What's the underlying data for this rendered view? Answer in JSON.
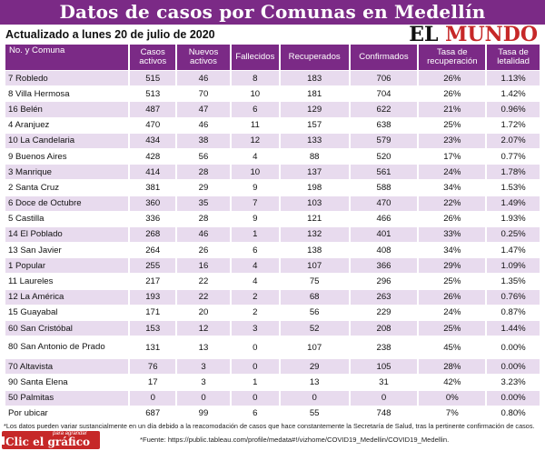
{
  "header": {
    "title": "Datos de casos por Comunas en Medellín",
    "updated": "Actualizado a lunes 20 de julio de 2020",
    "logo_prefix": "EL ",
    "logo_accent": "MUNDO"
  },
  "table": {
    "columns": [
      "No. y Comuna",
      "Casos activos",
      "Nuevos activos",
      "Fallecidos",
      "Recuperados",
      "Confirmados",
      "Tasa de recuperación",
      "Tasa de letalidad"
    ],
    "rows": [
      [
        "7 Robledo",
        "515",
        "46",
        "8",
        "183",
        "706",
        "26%",
        "1.13%"
      ],
      [
        "8 Villa Hermosa",
        "513",
        "70",
        "10",
        "181",
        "704",
        "26%",
        "1.42%"
      ],
      [
        "16 Belén",
        "487",
        "47",
        "6",
        "129",
        "622",
        "21%",
        "0.96%"
      ],
      [
        "4 Aranjuez",
        "470",
        "46",
        "11",
        "157",
        "638",
        "25%",
        "1.72%"
      ],
      [
        "10 La Candelaria",
        "434",
        "38",
        "12",
        "133",
        "579",
        "23%",
        "2.07%"
      ],
      [
        "9 Buenos Aires",
        "428",
        "56",
        "4",
        "88",
        "520",
        "17%",
        "0.77%"
      ],
      [
        "3 Manrique",
        "414",
        "28",
        "10",
        "137",
        "561",
        "24%",
        "1.78%"
      ],
      [
        "2 Santa Cruz",
        "381",
        "29",
        "9",
        "198",
        "588",
        "34%",
        "1.53%"
      ],
      [
        "6 Doce de Octubre",
        "360",
        "35",
        "7",
        "103",
        "470",
        "22%",
        "1.49%"
      ],
      [
        "5 Castilla",
        "336",
        "28",
        "9",
        "121",
        "466",
        "26%",
        "1.93%"
      ],
      [
        "14 El Poblado",
        "268",
        "46",
        "1",
        "132",
        "401",
        "33%",
        "0.25%"
      ],
      [
        "13 San Javier",
        "264",
        "26",
        "6",
        "138",
        "408",
        "34%",
        "1.47%"
      ],
      [
        "1 Popular",
        "255",
        "16",
        "4",
        "107",
        "366",
        "29%",
        "1.09%"
      ],
      [
        "11 Laureles",
        "217",
        "22",
        "4",
        "75",
        "296",
        "25%",
        "1.35%"
      ],
      [
        "12 La América",
        "193",
        "22",
        "2",
        "68",
        "263",
        "26%",
        "0.76%"
      ],
      [
        "15 Guayabal",
        "171",
        "20",
        "2",
        "56",
        "229",
        "24%",
        "0.87%"
      ],
      [
        "60 San Cristóbal",
        "153",
        "12",
        "3",
        "52",
        "208",
        "25%",
        "1.44%"
      ],
      [
        "80 San Antonio de Prado",
        "131",
        "13",
        "0",
        "107",
        "238",
        "45%",
        "0.00%"
      ],
      [
        "70 Altavista",
        "76",
        "3",
        "0",
        "29",
        "105",
        "28%",
        "0.00%"
      ],
      [
        "90 Santa Elena",
        "17",
        "3",
        "1",
        "13",
        "31",
        "42%",
        "3.23%"
      ],
      [
        "50 Palmitas",
        "0",
        "0",
        "0",
        "0",
        "0",
        "0%",
        "0.00%"
      ],
      [
        "Por ubicar",
        "687",
        "99",
        "6",
        "55",
        "748",
        "7%",
        "0.80%"
      ]
    ]
  },
  "footnote": "*Los datos pueden variar sustancialmente en un día debido a la reacomodación de casos que hace constantemente la Secretaría de Salud, tras la pertinente confirmación de casos.",
  "badge": {
    "small": "para agrandar",
    "big": "Clic el gráfico"
  },
  "source": "*Fuente: https://public.tableau.com/profile/medata#!/vizhome/COVID19_Medellin/COVID19_Medellin."
}
